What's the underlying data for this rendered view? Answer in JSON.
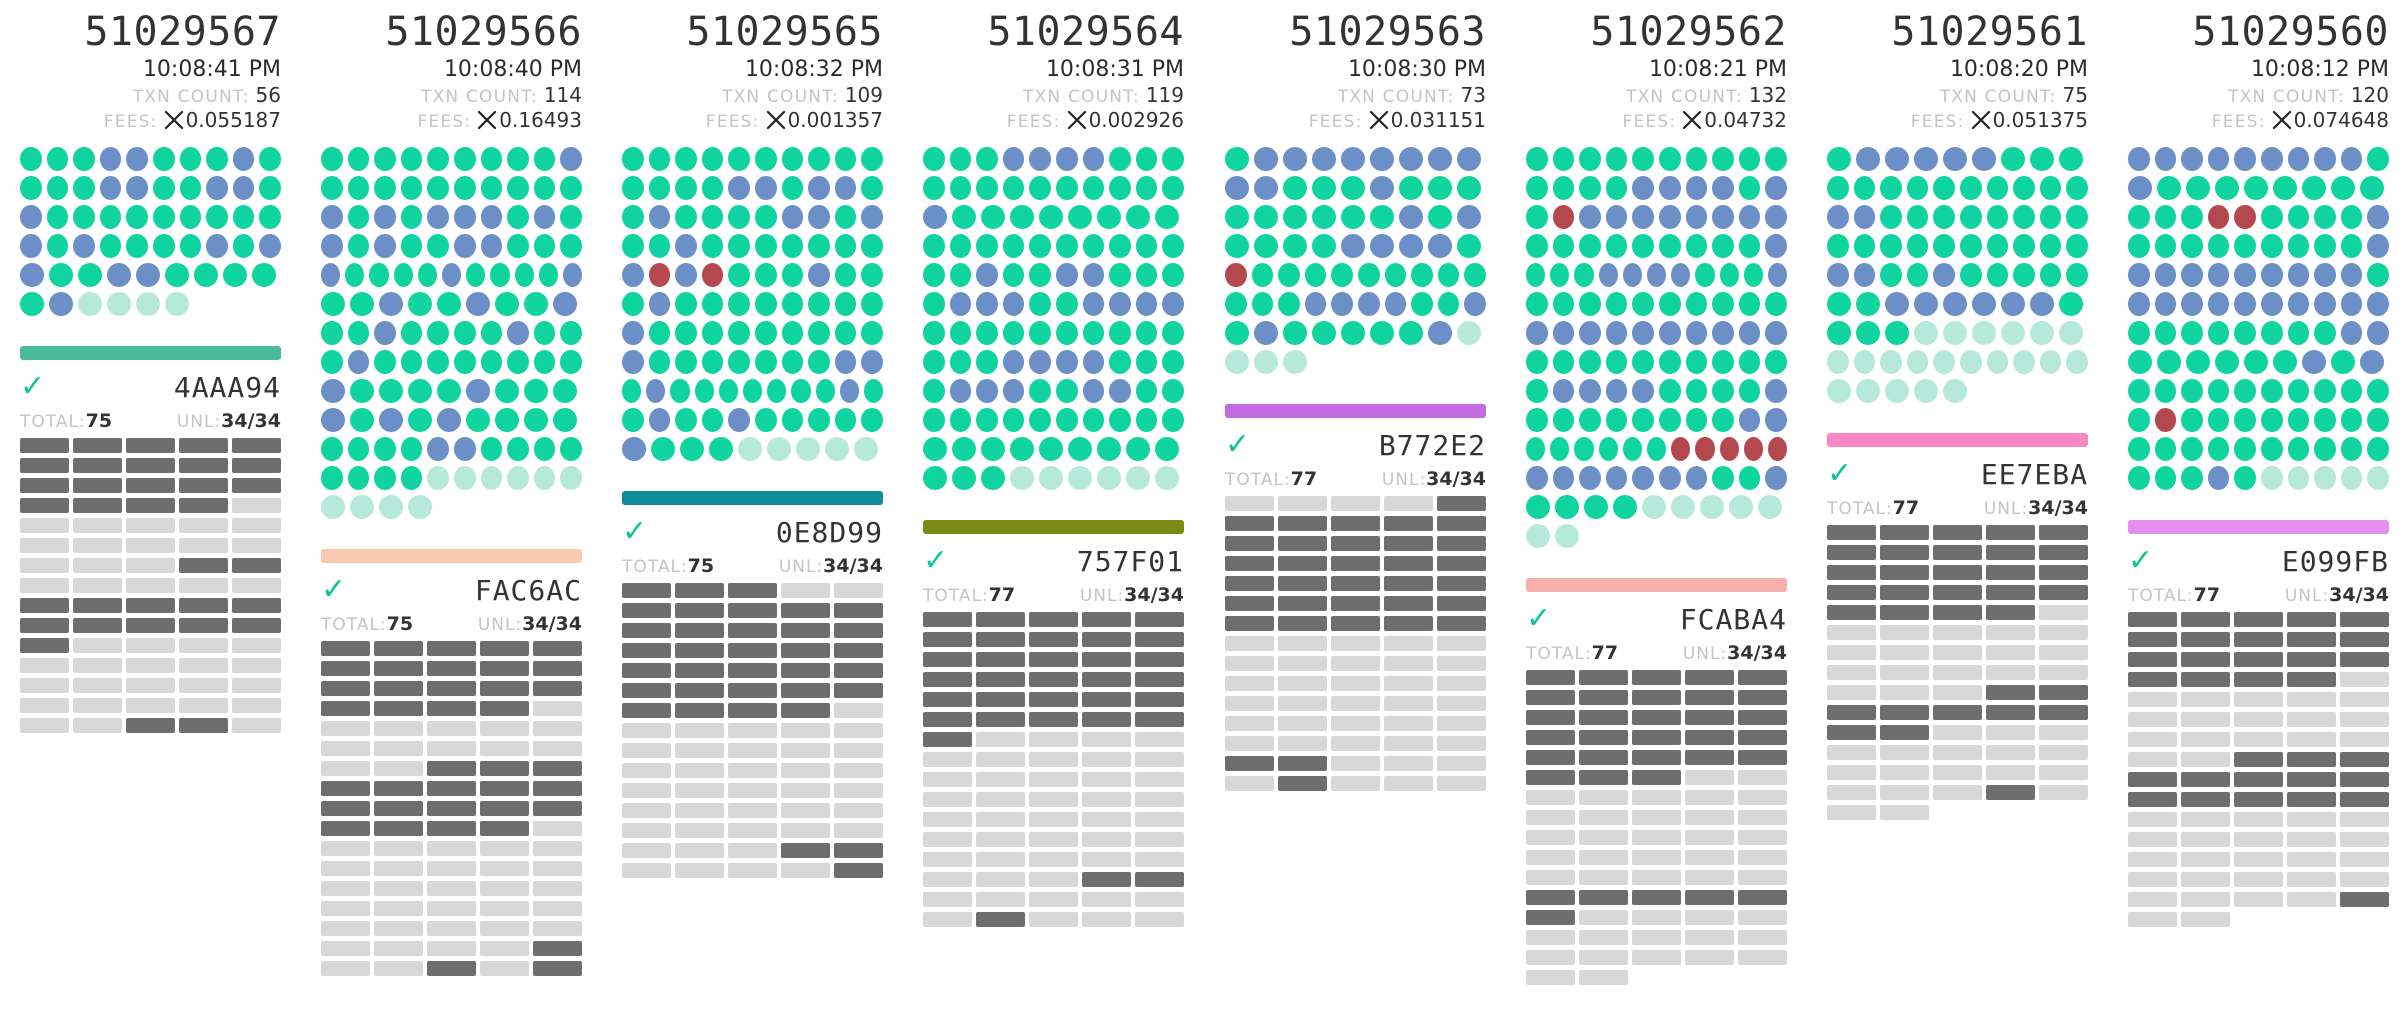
{
  "colors": {
    "success_dot": "#10d4a0",
    "other_dot": "#6b8fc6",
    "failed_dot": "#b4484e",
    "pending_dot": "#b6e9da",
    "validated": "#6e6e6e",
    "not_validated": "#d8d8d8",
    "check": "#10c49a"
  },
  "labels": {
    "txn_count": "TXN COUNT:",
    "fees": "FEES:",
    "total": "TOTAL:",
    "unl": "UNL:"
  },
  "icons": {
    "currency": "xrp-icon",
    "validated": "checkmark-icon"
  },
  "ledgers": [
    {
      "number": "51029567",
      "time": "10:08:41 PM",
      "txn_count": "56",
      "fees": "0.055187",
      "bar_color": "#48bb9d",
      "hash": "4AAA94",
      "total": "75",
      "unl": "34/34",
      "txn_dots": [
        "sssoosssos",
        "sssoossoos",
        "osssssssss",
        "osossssoso",
        "ossoossss",
        "sopppp"
      ],
      "validations": [
        "vvvvv",
        "vvvvv",
        "vvvvv",
        "vvvvn",
        "nnnnn",
        "nnnnn",
        "nnnvv",
        "nnnnn",
        "vvvvv",
        "vvvvv",
        "vnnnn",
        "nnnnn",
        "nnnnn",
        "nnnnn",
        "nnvvn"
      ]
    },
    {
      "number": "51029566",
      "time": "10:08:40 PM",
      "txn_count": "114",
      "fees": "0.16493",
      "bar_color": "#f9c9b0",
      "hash": "FAC6AC",
      "total": "75",
      "unl": "34/34",
      "txn_dots": [
        "ssssssssso",
        "ssssssssss",
        "ososooosos",
        "osossoosss",
        "ossssosssso",
        "ssossosso",
        "ssossssoss",
        "sossssssss",
        "ossssosss",
        "ososossss",
        "ssssoossss",
        "sssspppppp",
        "pppp"
      ],
      "validations": [
        "vvvvv",
        "vvvvv",
        "vvvvv",
        "vvvvn",
        "nnnnn",
        "nnnnn",
        "nnvvv",
        "vvvvv",
        "vvvvv",
        "vvvvn",
        "nnnnn",
        "nnnnn",
        "nnnnn",
        "nnnnn",
        "nnnnn",
        "nnnnv",
        "nnvnv"
      ]
    },
    {
      "number": "51029565",
      "time": "10:08:32 PM",
      "txn_count": "109",
      "fees": "0.001357",
      "bar_color": "#0e8c9a",
      "hash": "0E8D99",
      "total": "75",
      "unl": "34/34",
      "txn_dots": [
        "ssssssssss",
        "ssssoosoos",
        "sossssooso",
        "ssosssssss",
        "ofofsssoss",
        "sossssssss",
        "osssssssss",
        "osssssssoo",
        "sosssssssos",
        "sossosssss",
        "osssppppp"
      ],
      "validations": [
        "vvvnn",
        "vvvvv",
        "vvvvv",
        "vvvvv",
        "vvvvv",
        "vvvvv",
        "vvvvn",
        "nnnnn",
        "nnnnn",
        "nnnnn",
        "nnnnn",
        "nnnnn",
        "nnnnn",
        "nnnvv",
        "nnnnv"
      ]
    },
    {
      "number": "51029564",
      "time": "10:08:31 PM",
      "txn_count": "119",
      "fees": "0.002926",
      "bar_color": "#7a8a14",
      "hash": "757F01",
      "total": "77",
      "unl": "34/34",
      "txn_dots": [
        "sssoooosss",
        "ssssssssss",
        "ossssssss",
        "ssssssssss",
        "ssossoosss",
        "sooossoooo",
        "ssssssssss",
        "sssoooosss",
        "sooossooss",
        "ssssssssss",
        "sssssssss",
        "ssspppppp"
      ],
      "validations": [
        "vvvvv",
        "vvvvv",
        "vvvvv",
        "vvvvv",
        "vvvvv",
        "vvvvv",
        "vnnnn",
        "nnnnn",
        "nnnnn",
        "nnnnn",
        "nnnnn",
        "nnnnn",
        "nnnnn",
        "nnnvv",
        "nnnnn",
        "nvnnn"
      ]
    },
    {
      "number": "51029563",
      "time": "10:08:30 PM",
      "txn_count": "73",
      "fees": "0.031151",
      "bar_color": "#c26be3",
      "hash": "B772E2",
      "total": "77",
      "unl": "34/34",
      "txn_dots": [
        "soooooooo",
        "oosssosss",
        "ssssssoso",
        "ssssoooos",
        "fsssssssss",
        "sssoooosso",
        "sosssssop",
        "ppp"
      ],
      "validations": [
        "nnnnv",
        "vvvvv",
        "vvvvv",
        "vvvvv",
        "vvvvv",
        "vvvvv",
        "vvvvv",
        "nnnnn",
        "nnnnn",
        "nnnnn",
        "nnnnn",
        "nnnnn",
        "nnnnn",
        "vvnnn",
        "nvnnn"
      ]
    },
    {
      "number": "51029562",
      "time": "10:08:21 PM",
      "txn_count": "132",
      "fees": "0.04732",
      "bar_color": "#f8b0ad",
      "hash": "FCABA4",
      "total": "77",
      "unl": "34/34",
      "txn_dots": [
        "ssssssssss",
        "ssssooooso",
        "sfoooooooo",
        "ssssssssso",
        "sssoooossso",
        "ssssssssss",
        "oooooooooo",
        "ssssssssss",
        "soooosssso",
        "ssssssssoo",
        "ssssssfffff",
        "ooooooosso",
        "ssssppppp",
        "pp"
      ],
      "validations": [
        "vvvvv",
        "vvvvv",
        "vvvvv",
        "vvvvv",
        "vvvvv",
        "vvvnn",
        "nnnnn",
        "nnnnn",
        "nnnnn",
        "nnnnn",
        "nnnnn",
        "vvvvv",
        "vnnnn",
        "nnnnn",
        "nnnnn",
        "nn"
      ]
    },
    {
      "number": "51029561",
      "time": "10:08:20 PM",
      "txn_count": "75",
      "fees": "0.051375",
      "bar_color": "#f887c4",
      "hash": "EE7EBA",
      "total": "77",
      "unl": "34/34",
      "txn_dots": [
        "sooooosss",
        "ssssssssss",
        "oossssssss",
        "ssssssssss",
        "oossosssss",
        "ssoooooos",
        "ssspppppp",
        "pppppppppp",
        "ppppp"
      ],
      "validations": [
        "vvvvv",
        "vvvvv",
        "vvvvv",
        "vvvvv",
        "vvvvn",
        "nnnnn",
        "nnnnn",
        "nnnnn",
        "nnnvv",
        "vvvvv",
        "vvnnn",
        "nnnnn",
        "nnnnn",
        "nnnvn",
        "nn"
      ]
    },
    {
      "number": "51029560",
      "time": "10:08:12 PM",
      "txn_count": "120",
      "fees": "0.074648",
      "bar_color": "#e48ff0",
      "hash": "E099FB",
      "total": "77",
      "unl": "34/34",
      "txn_dots": [
        "ooooooooos",
        "ossssssss",
        "sssffsssso",
        "ssssssssso",
        "ooooooooos",
        "oooooooooo",
        "ssssssssoo",
        "ssssssoso",
        "ssssssssss",
        "sfssssssss",
        "ssssssssss",
        "sssosppppp"
      ],
      "validations": [
        "vvvvv",
        "vvvvv",
        "vvvvv",
        "vvvvn",
        "nnnnn",
        "nnnnn",
        "nnnnn",
        "nnvvv",
        "vvvvv",
        "vvvvv",
        "nnnnn",
        "nnnnn",
        "nnnnn",
        "nnnnn",
        "nnnnv",
        "nn"
      ]
    }
  ]
}
